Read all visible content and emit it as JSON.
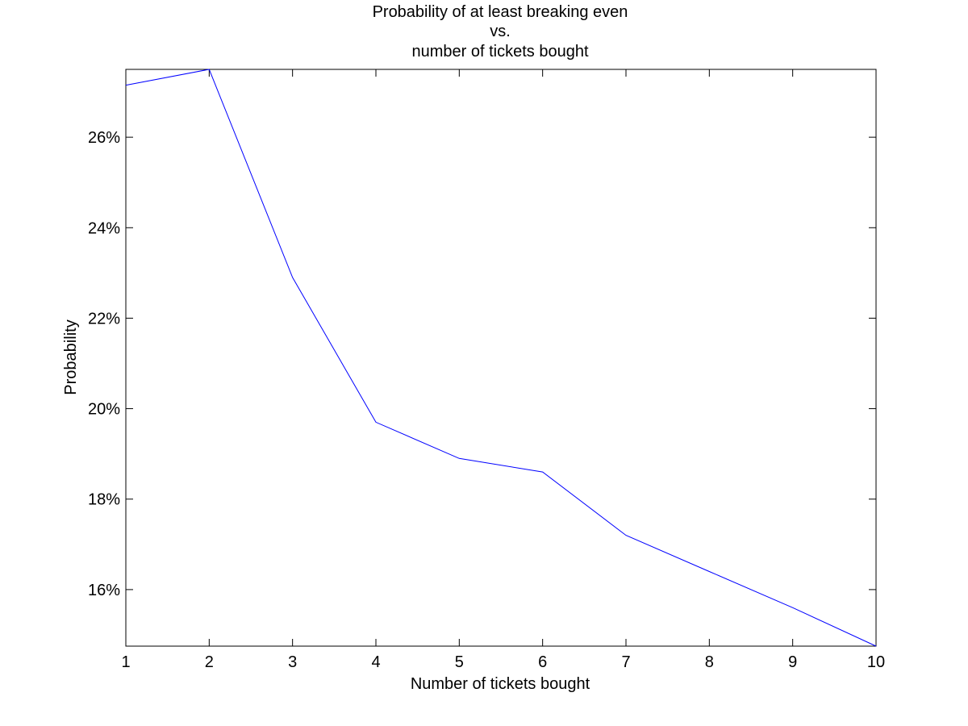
{
  "chart_data": {
    "type": "line",
    "title_lines": [
      "Probability of at least breaking even",
      "vs.",
      "number of tickets bought"
    ],
    "xlabel": "Number of tickets bought",
    "ylabel": "Probability",
    "xlim": [
      1,
      10
    ],
    "ylim": [
      14.75,
      27.5
    ],
    "x_ticks": [
      1,
      2,
      3,
      4,
      5,
      6,
      7,
      8,
      9,
      10
    ],
    "x_tick_labels": [
      "1",
      "2",
      "3",
      "4",
      "5",
      "6",
      "7",
      "8",
      "9",
      "10"
    ],
    "y_ticks": [
      16,
      18,
      20,
      22,
      24,
      26
    ],
    "y_tick_labels": [
      "16%",
      "18%",
      "20%",
      "22%",
      "24%",
      "26%"
    ],
    "grid": false,
    "series": [
      {
        "color": "#0000ff",
        "x": [
          1,
          2,
          3,
          4,
          5,
          6,
          7,
          8,
          9,
          10
        ],
        "y": [
          27.15,
          27.5,
          22.9,
          19.7,
          18.9,
          18.6,
          17.2,
          16.4,
          15.6,
          14.75
        ]
      }
    ]
  }
}
